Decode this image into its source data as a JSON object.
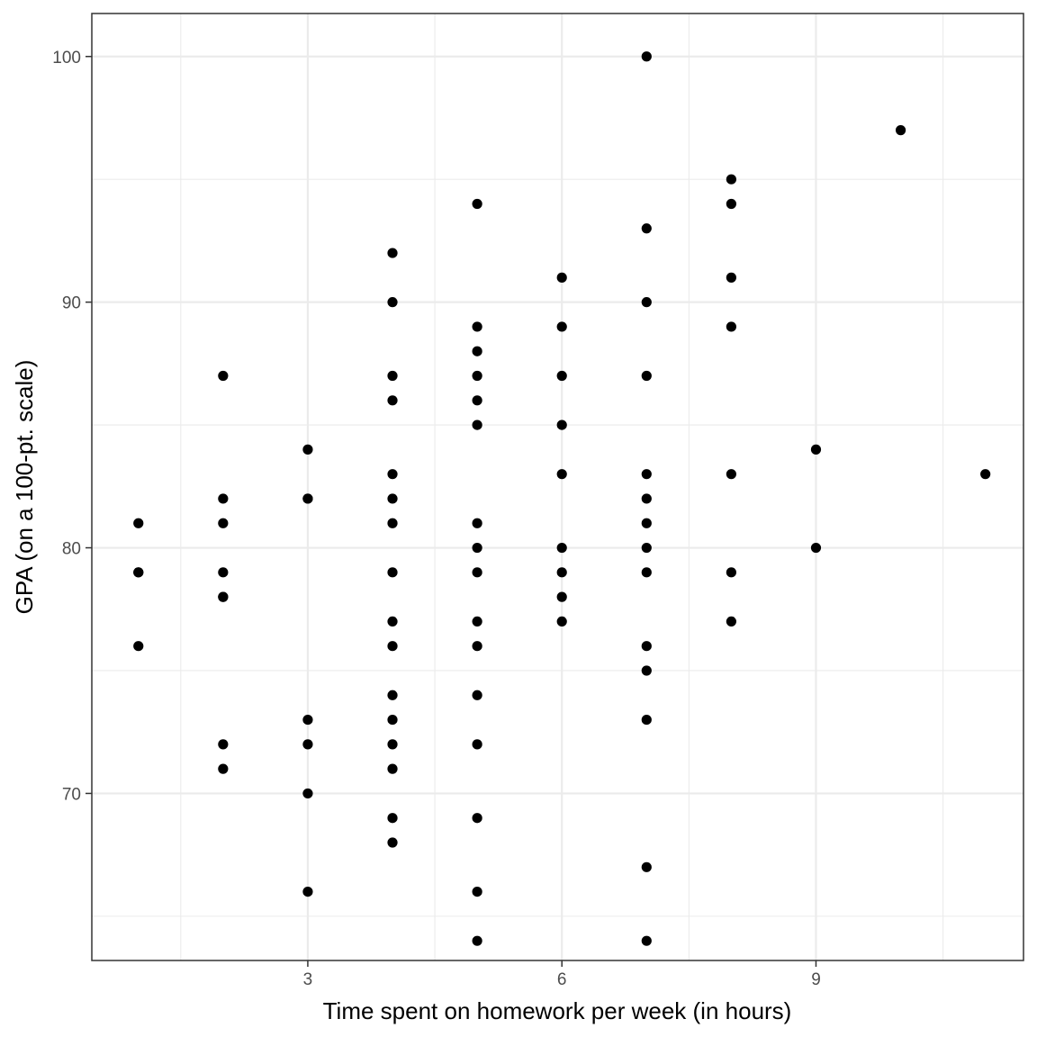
{
  "chart_data": {
    "type": "scatter",
    "title": "",
    "xlabel": "Time spent on homework per week (in hours)",
    "ylabel": "GPA (on a 100-pt. scale)",
    "xlim": [
      0.45,
      11.45
    ],
    "ylim": [
      63.2,
      101.75
    ],
    "x_ticks": [
      3,
      6,
      9
    ],
    "x_tick_labels": [
      "3",
      "6",
      "9"
    ],
    "x_minor_ticks": [
      1.5,
      4.5,
      7.5,
      10.5
    ],
    "y_ticks": [
      70,
      80,
      90,
      100
    ],
    "y_tick_labels": [
      "70",
      "80",
      "90",
      "100"
    ],
    "y_minor_ticks": [
      65,
      75,
      85,
      95
    ],
    "grid": true,
    "point_color": "#000000",
    "points": [
      {
        "x": 1,
        "y": 81
      },
      {
        "x": 1,
        "y": 79
      },
      {
        "x": 1,
        "y": 79
      },
      {
        "x": 1,
        "y": 76
      },
      {
        "x": 2,
        "y": 87
      },
      {
        "x": 2,
        "y": 82
      },
      {
        "x": 2,
        "y": 81
      },
      {
        "x": 2,
        "y": 79
      },
      {
        "x": 2,
        "y": 78
      },
      {
        "x": 2,
        "y": 78
      },
      {
        "x": 2,
        "y": 72
      },
      {
        "x": 2,
        "y": 71
      },
      {
        "x": 3,
        "y": 84
      },
      {
        "x": 3,
        "y": 82
      },
      {
        "x": 3,
        "y": 82
      },
      {
        "x": 3,
        "y": 73
      },
      {
        "x": 3,
        "y": 72
      },
      {
        "x": 3,
        "y": 70
      },
      {
        "x": 3,
        "y": 66
      },
      {
        "x": 4,
        "y": 92
      },
      {
        "x": 4,
        "y": 90
      },
      {
        "x": 4,
        "y": 87
      },
      {
        "x": 4,
        "y": 86
      },
      {
        "x": 4,
        "y": 83
      },
      {
        "x": 4,
        "y": 82
      },
      {
        "x": 4,
        "y": 81
      },
      {
        "x": 4,
        "y": 79
      },
      {
        "x": 4,
        "y": 77
      },
      {
        "x": 4,
        "y": 76
      },
      {
        "x": 4,
        "y": 74
      },
      {
        "x": 4,
        "y": 73
      },
      {
        "x": 4,
        "y": 72
      },
      {
        "x": 4,
        "y": 71
      },
      {
        "x": 4,
        "y": 69
      },
      {
        "x": 4,
        "y": 68
      },
      {
        "x": 5,
        "y": 94
      },
      {
        "x": 5,
        "y": 89
      },
      {
        "x": 5,
        "y": 88
      },
      {
        "x": 5,
        "y": 87
      },
      {
        "x": 5,
        "y": 86
      },
      {
        "x": 5,
        "y": 85
      },
      {
        "x": 5,
        "y": 81
      },
      {
        "x": 5,
        "y": 80
      },
      {
        "x": 5,
        "y": 79
      },
      {
        "x": 5,
        "y": 77
      },
      {
        "x": 5,
        "y": 76
      },
      {
        "x": 5,
        "y": 74
      },
      {
        "x": 5,
        "y": 72
      },
      {
        "x": 5,
        "y": 69
      },
      {
        "x": 5,
        "y": 66
      },
      {
        "x": 5,
        "y": 64
      },
      {
        "x": 6,
        "y": 91
      },
      {
        "x": 6,
        "y": 89
      },
      {
        "x": 6,
        "y": 87
      },
      {
        "x": 6,
        "y": 85
      },
      {
        "x": 6,
        "y": 83
      },
      {
        "x": 6,
        "y": 80
      },
      {
        "x": 6,
        "y": 79
      },
      {
        "x": 6,
        "y": 78
      },
      {
        "x": 6,
        "y": 77
      },
      {
        "x": 7,
        "y": 100
      },
      {
        "x": 7,
        "y": 93
      },
      {
        "x": 7,
        "y": 90
      },
      {
        "x": 7,
        "y": 87
      },
      {
        "x": 7,
        "y": 83
      },
      {
        "x": 7,
        "y": 82
      },
      {
        "x": 7,
        "y": 81
      },
      {
        "x": 7,
        "y": 80
      },
      {
        "x": 7,
        "y": 79
      },
      {
        "x": 7,
        "y": 76
      },
      {
        "x": 7,
        "y": 75
      },
      {
        "x": 7,
        "y": 73
      },
      {
        "x": 7,
        "y": 67
      },
      {
        "x": 7,
        "y": 64
      },
      {
        "x": 8,
        "y": 95
      },
      {
        "x": 8,
        "y": 94
      },
      {
        "x": 8,
        "y": 91
      },
      {
        "x": 8,
        "y": 89
      },
      {
        "x": 8,
        "y": 83
      },
      {
        "x": 8,
        "y": 79
      },
      {
        "x": 8,
        "y": 77
      },
      {
        "x": 9,
        "y": 84
      },
      {
        "x": 9,
        "y": 80
      },
      {
        "x": 10,
        "y": 97
      },
      {
        "x": 11,
        "y": 83
      }
    ]
  }
}
